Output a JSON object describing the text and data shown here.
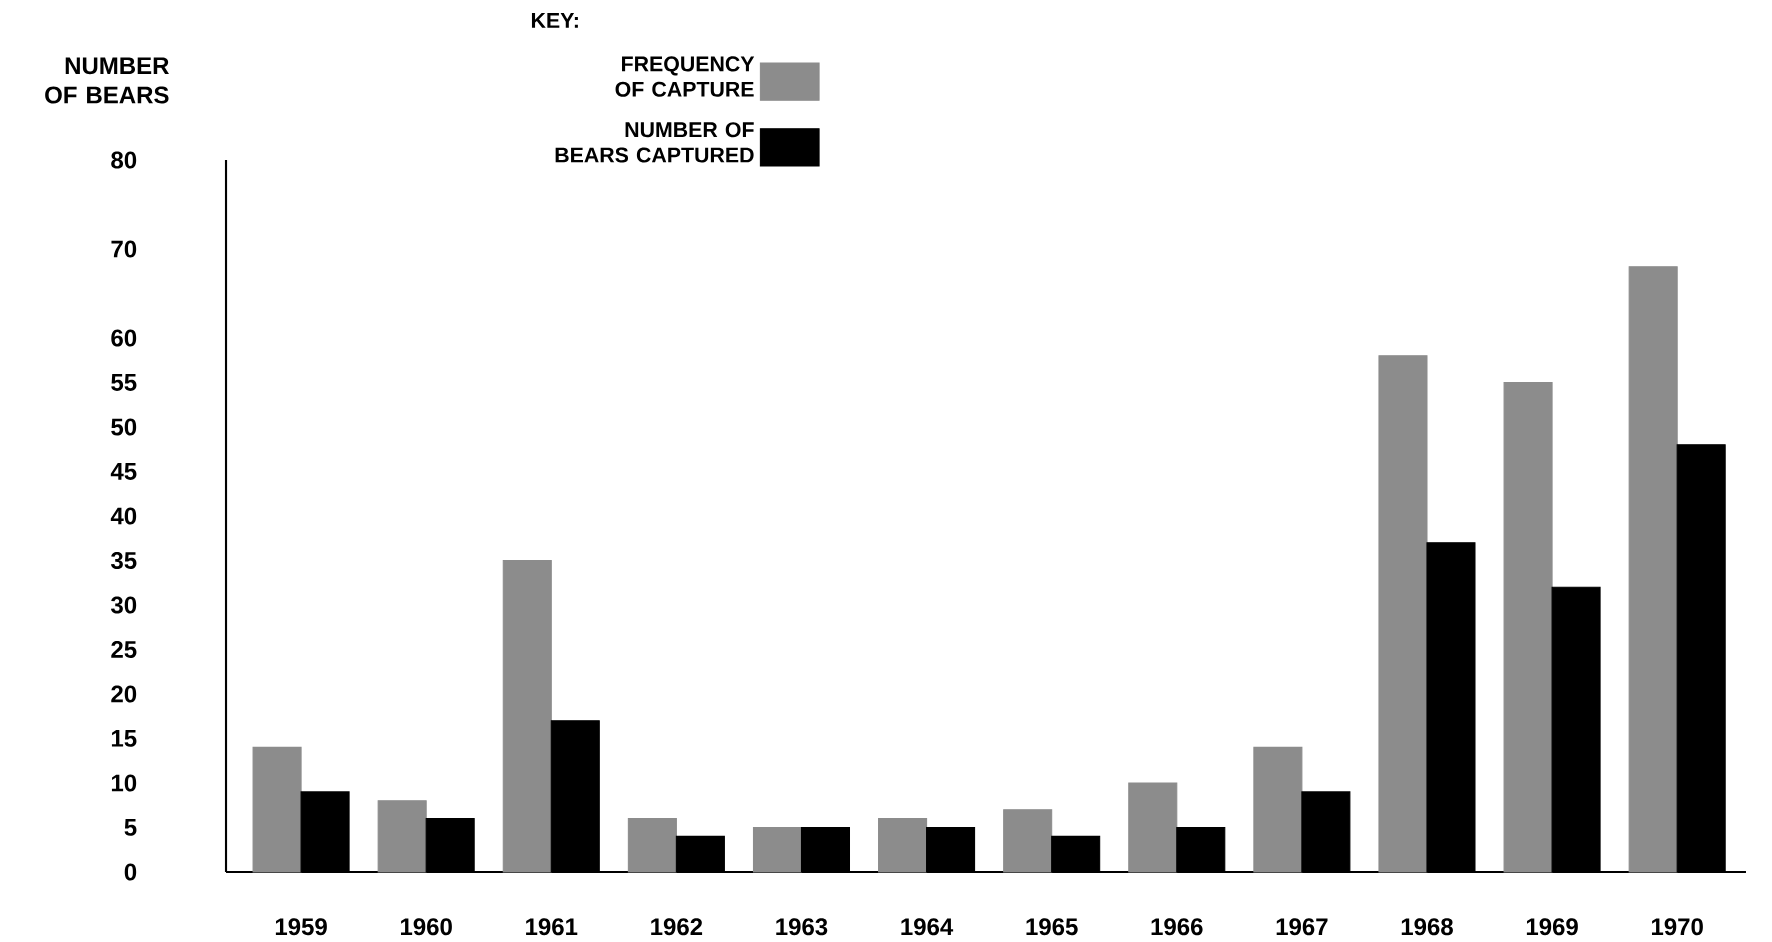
{
  "chart_data": {
    "type": "bar",
    "ylabel": "NUMBER OF BEARS",
    "legend_title": "KEY:",
    "categories": [
      "1959",
      "1960",
      "1961",
      "1962",
      "1963",
      "1964",
      "1965",
      "1966",
      "1967",
      "1968",
      "1969",
      "1970"
    ],
    "series": [
      {
        "name": "FREQUENCY OF CAPTURE",
        "color": "#8c8c8c",
        "values": [
          14,
          8,
          35,
          6,
          5,
          6,
          7,
          10,
          14,
          58,
          55,
          68
        ]
      },
      {
        "name": "NUMBER OF BEARS CAPTURED",
        "color": "#000000",
        "values": [
          9,
          6,
          17,
          4,
          5,
          5,
          4,
          5,
          9,
          37,
          32,
          48
        ]
      }
    ],
    "ylim": [
      0,
      80
    ],
    "yticks": [
      0,
      5,
      10,
      15,
      20,
      25,
      30,
      35,
      40,
      45,
      50,
      55,
      60,
      70,
      80
    ],
    "legend": "top",
    "grid": false
  }
}
